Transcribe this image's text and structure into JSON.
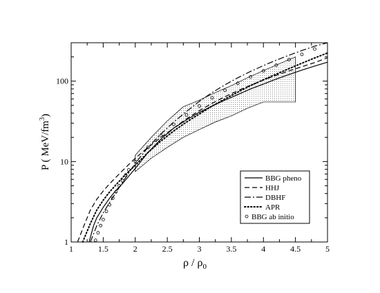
{
  "chart_data": {
    "type": "line",
    "title": "",
    "xlabel_main": "ρ / ρ",
    "xlabel_sub": "0",
    "ylabel_main": "P ( MeV/fm",
    "ylabel_sup": "3",
    "ylabel_end": ")",
    "x_ticks": [
      "1",
      "1.5",
      "2",
      "2.5",
      "3",
      "3.5",
      "4",
      "4.5",
      "5"
    ],
    "y_ticks": [
      "1",
      "10",
      "100"
    ],
    "xlim": [
      1,
      5
    ],
    "ylim": [
      1,
      300
    ],
    "y_scale": "log",
    "grid": false,
    "legend_position": "lower-right",
    "series": [
      {
        "name": "BBG pheno",
        "style": "solid",
        "x": [
          1.28,
          1.35,
          1.4,
          1.5,
          1.6,
          1.7,
          1.8,
          1.9,
          2.0,
          2.2,
          2.4,
          2.6,
          2.8,
          3.0,
          3.2,
          3.4,
          3.6,
          3.8,
          4.0,
          4.2,
          4.4,
          4.6,
          4.8,
          5.0
        ],
        "y": [
          1.0,
          1.6,
          2.0,
          2.7,
          3.5,
          4.4,
          5.3,
          6.6,
          8.2,
          13,
          19,
          26,
          33,
          41,
          49,
          58,
          68,
          80,
          92,
          106,
          121,
          137,
          154,
          172
        ]
      },
      {
        "name": "HHJ",
        "style": "dashed",
        "x": [
          1.1,
          1.2,
          1.3,
          1.4,
          1.5,
          1.6,
          1.8,
          2.0,
          2.2,
          2.4,
          2.6,
          2.8,
          3.0,
          3.2,
          3.4,
          3.6,
          3.8,
          4.0,
          4.2,
          4.4,
          4.6,
          4.8,
          5.0
        ],
        "y": [
          1.0,
          1.6,
          2.5,
          3.4,
          4.3,
          5.3,
          7.7,
          11,
          15,
          20,
          26,
          34,
          43,
          53,
          64,
          76,
          89,
          103,
          118,
          134,
          151,
          170,
          195
        ]
      },
      {
        "name": "DBHF",
        "style": "dashdot",
        "x": [
          1.3,
          1.4,
          1.5,
          1.6,
          1.8,
          2.0,
          2.2,
          2.4,
          2.6,
          2.8,
          3.0,
          3.2,
          3.4,
          3.6,
          3.8,
          4.0,
          4.2,
          4.4,
          4.6,
          4.8,
          5.0
        ],
        "y": [
          1.0,
          1.6,
          2.3,
          3.1,
          5.5,
          9.5,
          15,
          22,
          31,
          42,
          56,
          72,
          90,
          110,
          132,
          156,
          182,
          210,
          240,
          272,
          305
        ]
      },
      {
        "name": "APR",
        "style": "dotted",
        "x": [
          1.18,
          1.3,
          1.4,
          1.5,
          1.6,
          1.8,
          2.0,
          2.2,
          2.4,
          2.6,
          2.8,
          3.0,
          3.2,
          3.4,
          3.6,
          3.8,
          4.0,
          4.2,
          4.4,
          4.6,
          4.8,
          5.0
        ],
        "y": [
          1.0,
          1.7,
          2.5,
          3.3,
          4.2,
          6.3,
          9.0,
          13,
          18,
          24,
          31,
          39,
          49,
          60,
          73,
          88,
          104,
          122,
          143,
          167,
          194,
          224
        ]
      },
      {
        "name": "BBG ab initio",
        "style": "circles",
        "x": [
          1.38,
          1.42,
          1.46,
          1.5,
          1.55,
          1.6,
          1.65,
          1.7,
          1.75,
          1.8,
          1.85,
          1.9,
          2.0,
          2.2,
          2.4,
          2.6,
          2.8,
          3.0,
          3.2,
          3.4,
          3.6,
          3.8,
          4.0,
          4.2,
          4.4,
          4.6,
          4.8
        ],
        "y": [
          1.05,
          1.3,
          1.6,
          1.9,
          2.4,
          2.9,
          3.5,
          4.2,
          5.0,
          5.8,
          6.8,
          7.9,
          10,
          15,
          21,
          29,
          38,
          49,
          62,
          77,
          94,
          113,
          134,
          158,
          185,
          215,
          250
        ]
      }
    ],
    "band": {
      "x_upper": [
        2.0,
        2.25,
        2.5,
        2.75,
        3.0,
        3.25,
        3.5,
        3.75,
        4.0,
        4.25,
        4.5
      ],
      "y_upper": [
        12,
        20,
        32,
        48,
        58,
        72,
        88,
        110,
        135,
        165,
        200
      ],
      "x_lower": [
        4.5,
        4.25,
        4.0,
        3.75,
        3.5,
        3.25,
        3.0,
        2.75,
        2.5,
        2.25,
        2.0
      ],
      "y_lower": [
        55,
        55,
        55,
        46,
        37,
        31,
        25,
        20,
        15,
        11,
        7.5
      ]
    }
  }
}
